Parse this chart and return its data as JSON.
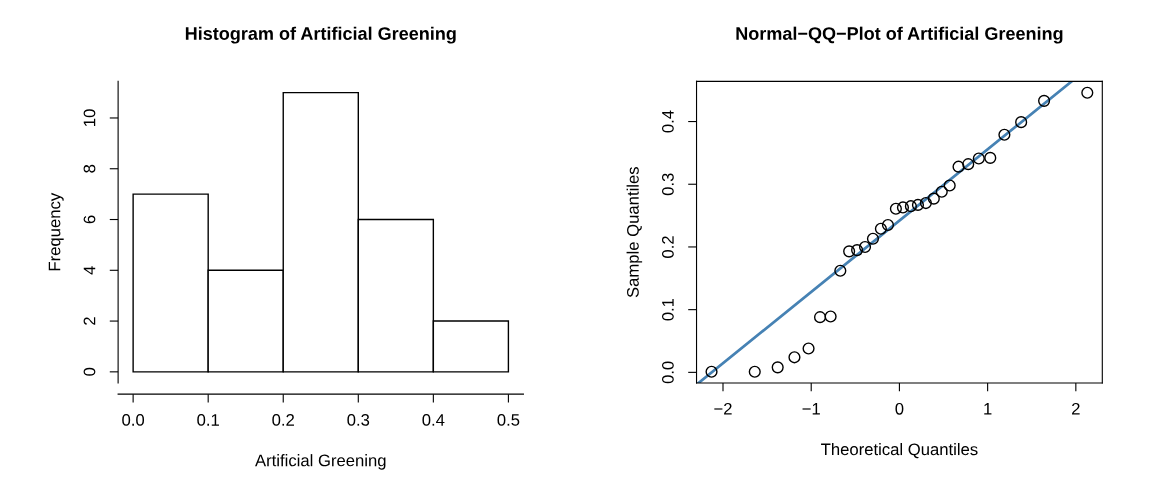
{
  "chart_data": [
    {
      "type": "histogram",
      "title": "Histogram of Artificial Greening",
      "xlabel": "Artificial Greening",
      "ylabel": "Frequency",
      "bins": [
        0.0,
        0.1,
        0.2,
        0.3,
        0.4,
        0.5
      ],
      "values": [
        7,
        4,
        11,
        6,
        2
      ],
      "color": "#ffffff",
      "xlim": [
        -0.02,
        0.52
      ],
      "ylim": [
        -0.44,
        11.44
      ],
      "xticks": [
        {
          "value": 0.0,
          "label": "0.0"
        },
        0.1,
        0.2,
        0.3,
        0.4,
        0.5
      ],
      "yticks": [
        0,
        2,
        4,
        6,
        8,
        10
      ]
    },
    {
      "type": "scatter",
      "title": "Normal−QQ−Plot of Artificial Greening",
      "xlabel": "Theoretical Quantiles",
      "ylabel": "Sample Quantiles",
      "series": [
        {
          "color": "#000000",
          "marker": "circle",
          "x": [
            -2.13,
            -1.64,
            -1.38,
            -1.19,
            -1.03,
            -0.9,
            -0.78,
            -0.67,
            -0.57,
            -0.48,
            -0.39,
            -0.3,
            -0.21,
            -0.13,
            -0.04,
            0.04,
            0.13,
            0.21,
            0.3,
            0.39,
            0.48,
            0.57,
            0.67,
            0.78,
            0.9,
            1.03,
            1.19,
            1.38,
            1.64,
            2.13
          ],
          "values": [
            0.001,
            0.001,
            0.008,
            0.024,
            0.038,
            0.088,
            0.089,
            0.162,
            0.193,
            0.195,
            0.2,
            0.213,
            0.229,
            0.235,
            0.261,
            0.263,
            0.265,
            0.267,
            0.27,
            0.277,
            0.288,
            0.298,
            0.328,
            0.332,
            0.341,
            0.342,
            0.379,
            0.399,
            0.433,
            0.446
          ]
        },
        {
          "type": "line",
          "color": "#4682b4",
          "x": [
            -2.278,
            1.953
          ],
          "values": [
            -0.017,
            0.464
          ]
        }
      ],
      "xlim": [
        -2.3,
        2.3
      ],
      "ylim": [
        -0.017,
        0.464
      ],
      "xticks": [
        {
          "value": -2,
          "label": "−2"
        },
        {
          "value": -1,
          "label": "−1"
        },
        0,
        1,
        2
      ],
      "yticks": [
        {
          "value": 0.0,
          "label": "0.0"
        },
        0.1,
        0.2,
        0.3,
        0.4
      ]
    }
  ]
}
